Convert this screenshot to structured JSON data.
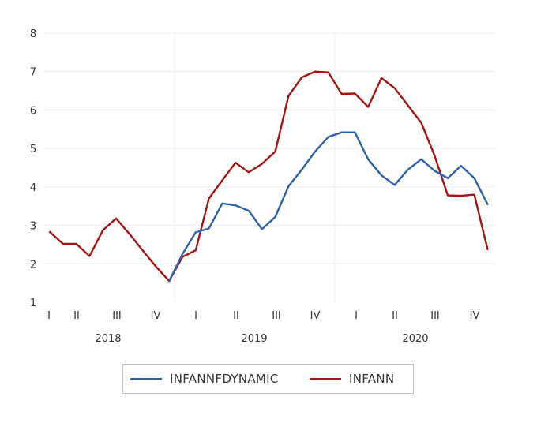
{
  "chart_data": {
    "type": "line",
    "ylim": [
      1,
      8
    ],
    "yticks": [
      "1",
      "2",
      "3",
      "4",
      "5",
      "6",
      "7",
      "8"
    ],
    "quarter_labels": [
      "I",
      "II",
      "III",
      "IV",
      "I",
      "II",
      "III",
      "IV",
      "I",
      "II",
      "III",
      "IV"
    ],
    "year_labels": [
      "2018",
      "2019",
      "2020"
    ],
    "grid": true,
    "legend_position": "bottom",
    "series": [
      {
        "name": "INFANNFDYNAMIC",
        "color": "#2e62a8",
        "start_index": 9,
        "values": [
          1.55,
          2.25,
          2.82,
          2.92,
          3.57,
          3.52,
          3.38,
          2.9,
          3.22,
          4.02,
          4.45,
          4.92,
          5.3,
          5.42,
          5.42,
          4.72,
          4.3,
          4.05,
          4.45,
          4.72,
          4.42,
          4.23,
          4.55,
          4.23,
          3.55
        ]
      },
      {
        "name": "INFANN",
        "color": "#a31515",
        "start_index": 0,
        "values": [
          2.83,
          2.52,
          2.52,
          2.2,
          2.87,
          3.18,
          2.78,
          2.35,
          1.93,
          1.55,
          2.18,
          2.35,
          3.7,
          4.17,
          4.63,
          4.38,
          4.6,
          4.92,
          6.37,
          6.85,
          7.0,
          6.98,
          6.42,
          6.43,
          6.08,
          6.83,
          6.57,
          6.12,
          5.67,
          4.82,
          3.78,
          3.77,
          3.8,
          2.38
        ]
      }
    ]
  }
}
